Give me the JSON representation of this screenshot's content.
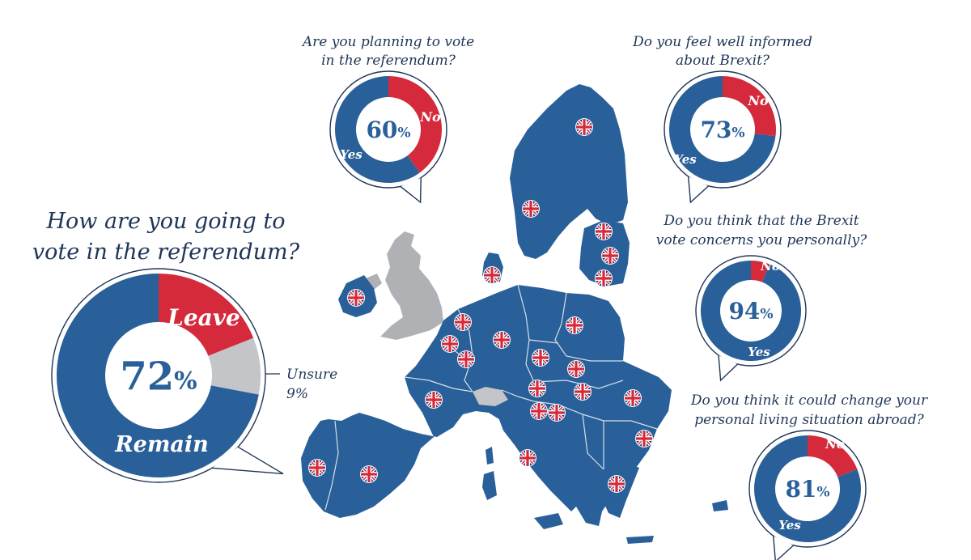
{
  "colors": {
    "remain_blue": "#2a6099",
    "leave_red": "#d42a3c",
    "unsure_grey": "#c4c5c9",
    "map_uk_grey": "#b0b1b5",
    "text_navy": "#1f3558"
  },
  "map": {
    "flag_icon": "union-jack-icon"
  },
  "main": {
    "title_line1": "How are you going to",
    "title_line2": "vote in the referendum?",
    "unsure_label": "Unsure",
    "unsure_value": "9%"
  },
  "chart_data": [
    {
      "type": "pie",
      "id": "main",
      "title": "How are you going to vote in the referendum?",
      "labels": [
        "Remain",
        "Leave",
        "Unsure"
      ],
      "values": [
        72,
        19,
        9
      ],
      "center_label": "72%"
    },
    {
      "type": "pie",
      "id": "q1",
      "title_lines": [
        "Are you planning to vote",
        "in the referendum?"
      ],
      "labels": [
        "Yes",
        "No"
      ],
      "values": [
        60,
        40
      ],
      "center_label": "60%"
    },
    {
      "type": "pie",
      "id": "q2",
      "title_lines": [
        "Do you feel well informed",
        "about Brexit?"
      ],
      "labels": [
        "Yes",
        "No"
      ],
      "values": [
        73,
        27
      ],
      "center_label": "73%"
    },
    {
      "type": "pie",
      "id": "q3",
      "title_lines": [
        "Do you think that the Brexit",
        "vote concerns you personally?"
      ],
      "labels": [
        "Yes",
        "No"
      ],
      "values": [
        94,
        6
      ],
      "center_label": "94%"
    },
    {
      "type": "pie",
      "id": "q4",
      "title_lines": [
        "Do you think it could change your",
        "personal living situation abroad?"
      ],
      "labels": [
        "Yes",
        "No"
      ],
      "values": [
        81,
        19
      ],
      "center_label": "81%"
    }
  ]
}
